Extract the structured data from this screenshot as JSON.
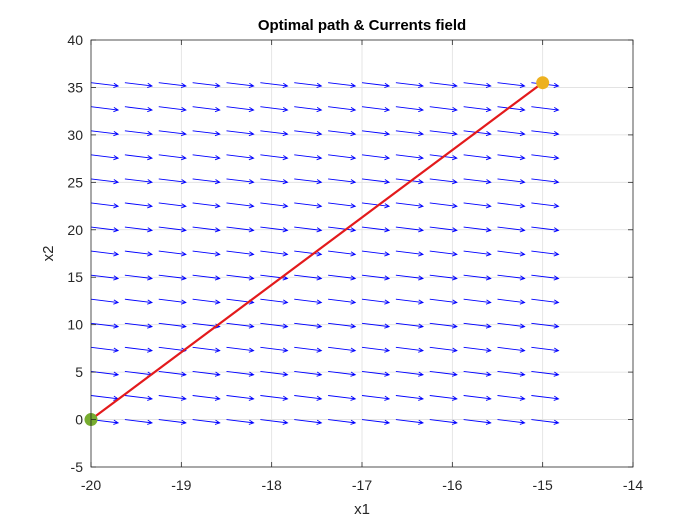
{
  "chart_data": {
    "type": "line",
    "title": "Optimal path & Currents field",
    "xlabel": "x1",
    "ylabel": "x2",
    "xlim": [
      -20,
      -14
    ],
    "ylim": [
      -5,
      40
    ],
    "xticks": [
      -20,
      -19,
      -18,
      -17,
      -16,
      -15,
      -14
    ],
    "yticks": [
      -5,
      0,
      5,
      10,
      15,
      20,
      25,
      30,
      35,
      40
    ],
    "xtick_labels": [
      "-20",
      "-19",
      "-18",
      "-17",
      "-16",
      "-15",
      "-14"
    ],
    "ytick_labels": [
      "-5",
      "0",
      "5",
      "10",
      "15",
      "20",
      "25",
      "30",
      "35",
      "40"
    ],
    "grid": true,
    "series": [
      {
        "x": [
          -20,
          -15
        ],
        "y": [
          0,
          35.5
        ],
        "color": "#e31a1c"
      }
    ],
    "markers": [
      {
        "x": -20,
        "y": 0,
        "color": "#77ac30"
      },
      {
        "x": -15,
        "y": 35.5,
        "color": "#edb120"
      }
    ],
    "currents_field": {
      "type": "quiver",
      "x_start": -20,
      "x_step": 0.375,
      "x_count": 14,
      "y_start": 0,
      "y_step": 2.536,
      "y_count": 15,
      "u": 0.3,
      "v": -0.35,
      "color": "#0000ff"
    }
  }
}
